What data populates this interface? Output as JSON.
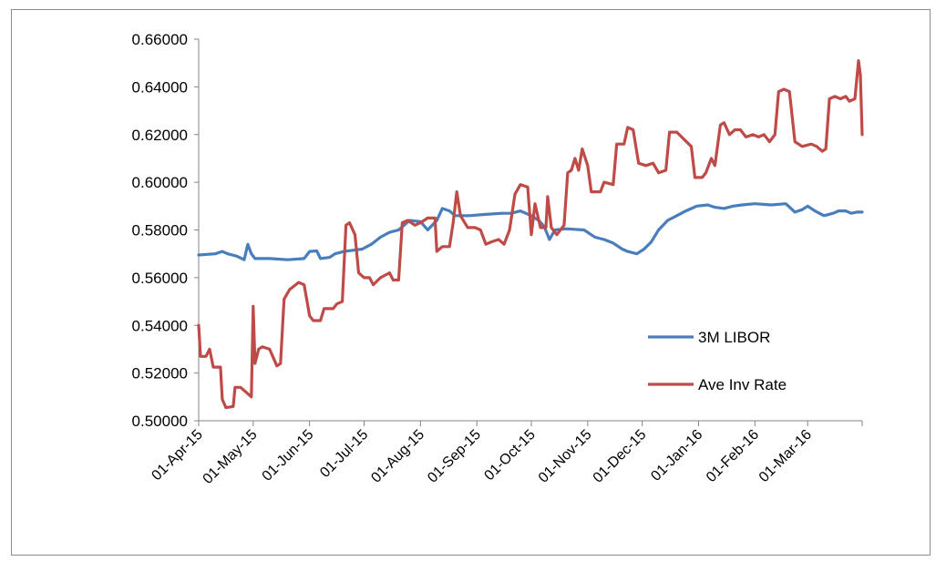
{
  "chart_data": {
    "type": "line",
    "title": "",
    "xlabel": "",
    "ylabel": "",
    "ylim": [
      0.5,
      0.66
    ],
    "yticks": [
      "0.50000",
      "0.52000",
      "0.54000",
      "0.56000",
      "0.58000",
      "0.60000",
      "0.62000",
      "0.64000",
      "0.66000"
    ],
    "xlim": [
      "2015-04-01",
      "2016-03-31"
    ],
    "xticks": [
      {
        "date": "2015-04-01",
        "label": "01-Apr-15"
      },
      {
        "date": "2015-05-01",
        "label": "01-May-15"
      },
      {
        "date": "2015-06-01",
        "label": "01-Jun-15"
      },
      {
        "date": "2015-07-01",
        "label": "01-Jul-15"
      },
      {
        "date": "2015-08-01",
        "label": "01-Aug-15"
      },
      {
        "date": "2015-09-01",
        "label": "01-Sep-15"
      },
      {
        "date": "2015-10-01",
        "label": "01-Oct-15"
      },
      {
        "date": "2015-11-01",
        "label": "01-Nov-15"
      },
      {
        "date": "2015-12-01",
        "label": "01-Dec-15"
      },
      {
        "date": "2016-01-01",
        "label": "01-Jan-16"
      },
      {
        "date": "2016-02-01",
        "label": "01-Feb-16"
      },
      {
        "date": "2016-03-01",
        "label": "01-Mar-16"
      }
    ],
    "legend_position": "right-middle",
    "grid": false,
    "series": [
      {
        "name": "3M LIBOR",
        "color": "#4a7ebb",
        "points": [
          [
            "2015-04-01",
            0.5695
          ],
          [
            "2015-04-10",
            0.57
          ],
          [
            "2015-04-14",
            0.571
          ],
          [
            "2015-04-17",
            0.57
          ],
          [
            "2015-04-22",
            0.569
          ],
          [
            "2015-04-26",
            0.5675
          ],
          [
            "2015-04-28",
            0.574
          ],
          [
            "2015-04-30",
            0.57
          ],
          [
            "2015-05-02",
            0.568
          ],
          [
            "2015-05-10",
            0.568
          ],
          [
            "2015-05-20",
            0.5675
          ],
          [
            "2015-05-29",
            0.568
          ],
          [
            "2015-06-01",
            0.571
          ],
          [
            "2015-06-05",
            0.5712
          ],
          [
            "2015-06-07",
            0.568
          ],
          [
            "2015-06-12",
            0.5685
          ],
          [
            "2015-06-15",
            0.57
          ],
          [
            "2015-06-20",
            0.571
          ],
          [
            "2015-06-25",
            0.5715
          ],
          [
            "2015-06-30",
            0.572
          ],
          [
            "2015-07-05",
            0.574
          ],
          [
            "2015-07-10",
            0.577
          ],
          [
            "2015-07-15",
            0.579
          ],
          [
            "2015-07-20",
            0.58
          ],
          [
            "2015-07-26",
            0.584
          ],
          [
            "2015-08-01",
            0.5835
          ],
          [
            "2015-08-05",
            0.58
          ],
          [
            "2015-08-10",
            0.584
          ],
          [
            "2015-08-13",
            0.589
          ],
          [
            "2015-08-17",
            0.588
          ],
          [
            "2015-08-20",
            0.586
          ],
          [
            "2015-08-28",
            0.586
          ],
          [
            "2015-09-05",
            0.5865
          ],
          [
            "2015-09-15",
            0.587
          ],
          [
            "2015-09-20",
            0.587
          ],
          [
            "2015-09-25",
            0.588
          ],
          [
            "2015-10-01",
            0.586
          ],
          [
            "2015-10-05",
            0.584
          ],
          [
            "2015-10-08",
            0.5815
          ],
          [
            "2015-10-11",
            0.576
          ],
          [
            "2015-10-14",
            0.58
          ],
          [
            "2015-10-20",
            0.5805
          ],
          [
            "2015-10-30",
            0.58
          ],
          [
            "2015-11-05",
            0.577
          ],
          [
            "2015-11-10",
            0.576
          ],
          [
            "2015-11-15",
            0.5745
          ],
          [
            "2015-11-20",
            0.572
          ],
          [
            "2015-11-23",
            0.571
          ],
          [
            "2015-11-28",
            0.57
          ],
          [
            "2015-12-02",
            0.572
          ],
          [
            "2015-12-06",
            0.575
          ],
          [
            "2015-12-10",
            0.58
          ],
          [
            "2015-12-15",
            0.584
          ],
          [
            "2015-12-20",
            0.586
          ],
          [
            "2015-12-25",
            0.588
          ],
          [
            "2015-12-31",
            0.59
          ],
          [
            "2016-01-06",
            0.5905
          ],
          [
            "2016-01-10",
            0.5895
          ],
          [
            "2016-01-15",
            0.589
          ],
          [
            "2016-01-20",
            0.59
          ],
          [
            "2016-01-25",
            0.5905
          ],
          [
            "2016-02-01",
            0.591
          ],
          [
            "2016-02-10",
            0.5905
          ],
          [
            "2016-02-18",
            0.591
          ],
          [
            "2016-02-23",
            0.5875
          ],
          [
            "2016-02-27",
            0.5885
          ],
          [
            "2016-03-01",
            0.59
          ],
          [
            "2016-03-05",
            0.588
          ],
          [
            "2016-03-10",
            0.586
          ],
          [
            "2016-03-15",
            0.587
          ],
          [
            "2016-03-18",
            0.588
          ],
          [
            "2016-03-22",
            0.588
          ],
          [
            "2016-03-25",
            0.587
          ],
          [
            "2016-03-28",
            0.5875
          ],
          [
            "2016-03-31",
            0.5875
          ]
        ]
      },
      {
        "name": "Ave Inv Rate",
        "color": "#be4b48",
        "points": [
          [
            "2015-04-01",
            0.54
          ],
          [
            "2015-04-02",
            0.527
          ],
          [
            "2015-04-05",
            0.527
          ],
          [
            "2015-04-07",
            0.53
          ],
          [
            "2015-04-09",
            0.5225
          ],
          [
            "2015-04-13",
            0.5225
          ],
          [
            "2015-04-14",
            0.509
          ],
          [
            "2015-04-16",
            0.5055
          ],
          [
            "2015-04-20",
            0.506
          ],
          [
            "2015-04-21",
            0.514
          ],
          [
            "2015-04-24",
            0.514
          ],
          [
            "2015-04-27",
            0.512
          ],
          [
            "2015-04-30",
            0.51
          ],
          [
            "2015-05-01",
            0.548
          ],
          [
            "2015-05-02",
            0.524
          ],
          [
            "2015-05-04",
            0.53
          ],
          [
            "2015-05-06",
            0.531
          ],
          [
            "2015-05-10",
            0.53
          ],
          [
            "2015-05-14",
            0.523
          ],
          [
            "2015-05-16",
            0.524
          ],
          [
            "2015-05-18",
            0.551
          ],
          [
            "2015-05-21",
            0.555
          ],
          [
            "2015-05-26",
            0.558
          ],
          [
            "2015-05-29",
            0.557
          ],
          [
            "2015-06-01",
            0.544
          ],
          [
            "2015-06-03",
            0.542
          ],
          [
            "2015-06-07",
            0.542
          ],
          [
            "2015-06-09",
            0.547
          ],
          [
            "2015-06-14",
            0.547
          ],
          [
            "2015-06-16",
            0.549
          ],
          [
            "2015-06-19",
            0.55
          ],
          [
            "2015-06-21",
            0.582
          ],
          [
            "2015-06-23",
            0.583
          ],
          [
            "2015-06-26",
            0.578
          ],
          [
            "2015-06-28",
            0.562
          ],
          [
            "2015-07-01",
            0.56
          ],
          [
            "2015-07-04",
            0.56
          ],
          [
            "2015-07-06",
            0.557
          ],
          [
            "2015-07-10",
            0.56
          ],
          [
            "2015-07-15",
            0.562
          ],
          [
            "2015-07-17",
            0.559
          ],
          [
            "2015-07-20",
            0.559
          ],
          [
            "2015-07-22",
            0.583
          ],
          [
            "2015-07-25",
            0.584
          ],
          [
            "2015-07-29",
            0.582
          ],
          [
            "2015-08-01",
            0.583
          ],
          [
            "2015-08-05",
            0.585
          ],
          [
            "2015-08-09",
            0.585
          ],
          [
            "2015-08-10",
            0.571
          ],
          [
            "2015-08-13",
            0.573
          ],
          [
            "2015-08-17",
            0.573
          ],
          [
            "2015-08-19",
            0.583
          ],
          [
            "2015-08-21",
            0.596
          ],
          [
            "2015-08-23",
            0.586
          ],
          [
            "2015-08-27",
            0.581
          ],
          [
            "2015-08-31",
            0.581
          ],
          [
            "2015-09-03",
            0.58
          ],
          [
            "2015-09-06",
            0.574
          ],
          [
            "2015-09-09",
            0.575
          ],
          [
            "2015-09-13",
            0.576
          ],
          [
            "2015-09-16",
            0.574
          ],
          [
            "2015-09-19",
            0.58
          ],
          [
            "2015-09-22",
            0.595
          ],
          [
            "2015-09-25",
            0.599
          ],
          [
            "2015-09-29",
            0.598
          ],
          [
            "2015-10-01",
            0.578
          ],
          [
            "2015-10-03",
            0.591
          ],
          [
            "2015-10-06",
            0.581
          ],
          [
            "2015-10-09",
            0.581
          ],
          [
            "2015-10-10",
            0.594
          ],
          [
            "2015-10-12",
            0.581
          ],
          [
            "2015-10-15",
            0.578
          ],
          [
            "2015-10-19",
            0.582
          ],
          [
            "2015-10-21",
            0.604
          ],
          [
            "2015-10-23",
            0.605
          ],
          [
            "2015-10-25",
            0.61
          ],
          [
            "2015-10-27",
            0.605
          ],
          [
            "2015-10-29",
            0.614
          ],
          [
            "2015-11-01",
            0.607
          ],
          [
            "2015-11-03",
            0.596
          ],
          [
            "2015-11-08",
            0.596
          ],
          [
            "2015-11-10",
            0.6
          ],
          [
            "2015-11-15",
            0.599
          ],
          [
            "2015-11-17",
            0.616
          ],
          [
            "2015-11-21",
            0.616
          ],
          [
            "2015-11-23",
            0.623
          ],
          [
            "2015-11-26",
            0.622
          ],
          [
            "2015-11-29",
            0.608
          ],
          [
            "2015-12-03",
            0.607
          ],
          [
            "2015-12-07",
            0.608
          ],
          [
            "2015-12-10",
            0.604
          ],
          [
            "2015-12-14",
            0.605
          ],
          [
            "2015-12-16",
            0.621
          ],
          [
            "2015-12-20",
            0.621
          ],
          [
            "2015-12-24",
            0.618
          ],
          [
            "2015-12-28",
            0.615
          ],
          [
            "2015-12-30",
            0.602
          ],
          [
            "2016-01-03",
            0.602
          ],
          [
            "2016-01-05",
            0.604
          ],
          [
            "2016-01-08",
            0.61
          ],
          [
            "2016-01-10",
            0.607
          ],
          [
            "2016-01-13",
            0.624
          ],
          [
            "2016-01-15",
            0.625
          ],
          [
            "2016-01-18",
            0.62
          ],
          [
            "2016-01-21",
            0.622
          ],
          [
            "2016-01-24",
            0.622
          ],
          [
            "2016-01-27",
            0.619
          ],
          [
            "2016-01-31",
            0.62
          ],
          [
            "2016-02-03",
            0.619
          ],
          [
            "2016-02-06",
            0.62
          ],
          [
            "2016-02-09",
            0.617
          ],
          [
            "2016-02-12",
            0.62
          ],
          [
            "2016-02-14",
            0.638
          ],
          [
            "2016-02-17",
            0.639
          ],
          [
            "2016-02-20",
            0.638
          ],
          [
            "2016-02-23",
            0.617
          ],
          [
            "2016-02-27",
            0.615
          ],
          [
            "2016-03-03",
            0.616
          ],
          [
            "2016-03-06",
            0.615
          ],
          [
            "2016-03-09",
            0.613
          ],
          [
            "2016-03-11",
            0.614
          ],
          [
            "2016-03-13",
            0.635
          ],
          [
            "2016-03-16",
            0.636
          ],
          [
            "2016-03-19",
            0.635
          ],
          [
            "2016-03-22",
            0.636
          ],
          [
            "2016-03-24",
            0.634
          ],
          [
            "2016-03-27",
            0.635
          ],
          [
            "2016-03-29",
            0.651
          ],
          [
            "2016-03-30",
            0.645
          ],
          [
            "2016-03-31",
            0.62
          ]
        ]
      }
    ]
  }
}
